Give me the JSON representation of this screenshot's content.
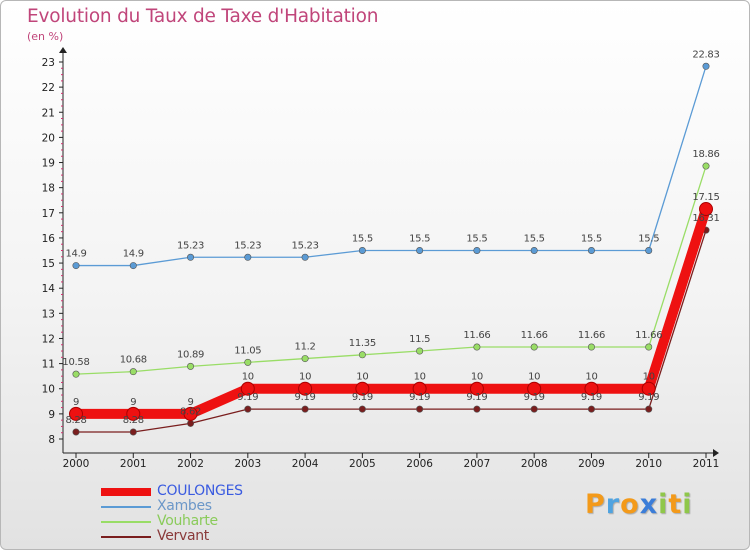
{
  "chart_data": {
    "type": "line",
    "title": "Evolution du Taux de Taxe d'Habitation",
    "subtitle": "(en %)",
    "categories": [
      "2000",
      "2001",
      "2002",
      "2003",
      "2004",
      "2005",
      "2006",
      "2007",
      "2008",
      "2009",
      "2010",
      "2011"
    ],
    "ylim": [
      8,
      23
    ],
    "yticks": [
      8,
      9,
      10,
      11,
      12,
      13,
      14,
      15,
      16,
      17,
      18,
      19,
      20,
      21,
      22,
      23
    ],
    "grid": false,
    "legend_position": "bottom-left",
    "series": [
      {
        "name": "COULONGES",
        "color": "#ee1111",
        "label_color": "#3a5be0",
        "values": [
          9,
          9,
          9,
          10,
          10,
          10,
          10,
          10,
          10,
          10,
          10,
          17.15
        ],
        "labels": [
          "9",
          "9",
          "9",
          "10",
          "10",
          "10",
          "10",
          "10",
          "10",
          "10",
          "10",
          "17.15"
        ]
      },
      {
        "name": "Xambes",
        "color": "#5b9bd5",
        "label_color": "#6b97c8",
        "values": [
          14.9,
          14.9,
          15.23,
          15.23,
          15.23,
          15.5,
          15.5,
          15.5,
          15.5,
          15.5,
          15.5,
          22.83
        ],
        "labels": [
          "14.9",
          "14.9",
          "15.23",
          "15.23",
          "15.23",
          "15.5",
          "15.5",
          "15.5",
          "15.5",
          "15.5",
          "15.5",
          "22.83"
        ]
      },
      {
        "name": "Vouharte",
        "color": "#99dd66",
        "label_color": "#8acb5a",
        "values": [
          10.58,
          10.68,
          10.89,
          11.05,
          11.2,
          11.35,
          11.5,
          11.66,
          11.66,
          11.66,
          11.66,
          18.86
        ],
        "labels": [
          "10.58",
          "10.68",
          "10.89",
          "11.05",
          "11.2",
          "11.35",
          "11.5",
          "11.66",
          "11.66",
          "11.66",
          "11.66",
          "18.86"
        ]
      },
      {
        "name": "Vervant",
        "color": "#7a1e1e",
        "label_color": "#8a3a3a",
        "values": [
          8.28,
          8.28,
          8.62,
          9.19,
          9.19,
          9.19,
          9.19,
          9.19,
          9.19,
          9.19,
          9.19,
          16.31
        ],
        "labels": [
          "8.28",
          "8.28",
          "8.62",
          "9.19",
          "9.19",
          "9.19",
          "9.19",
          "9.19",
          "9.19",
          "9.19",
          "9.19",
          "16.31"
        ]
      }
    ]
  },
  "brand": {
    "name": "Proxiti",
    "letters": [
      "P",
      "r",
      "o",
      "x",
      "i",
      "t",
      "i"
    ],
    "colors": [
      "#f39a1a",
      "#4fa3e0",
      "#f39a1a",
      "#3b7dd8",
      "#8fc74a",
      "#f39a1a",
      "#8fc74a"
    ]
  }
}
